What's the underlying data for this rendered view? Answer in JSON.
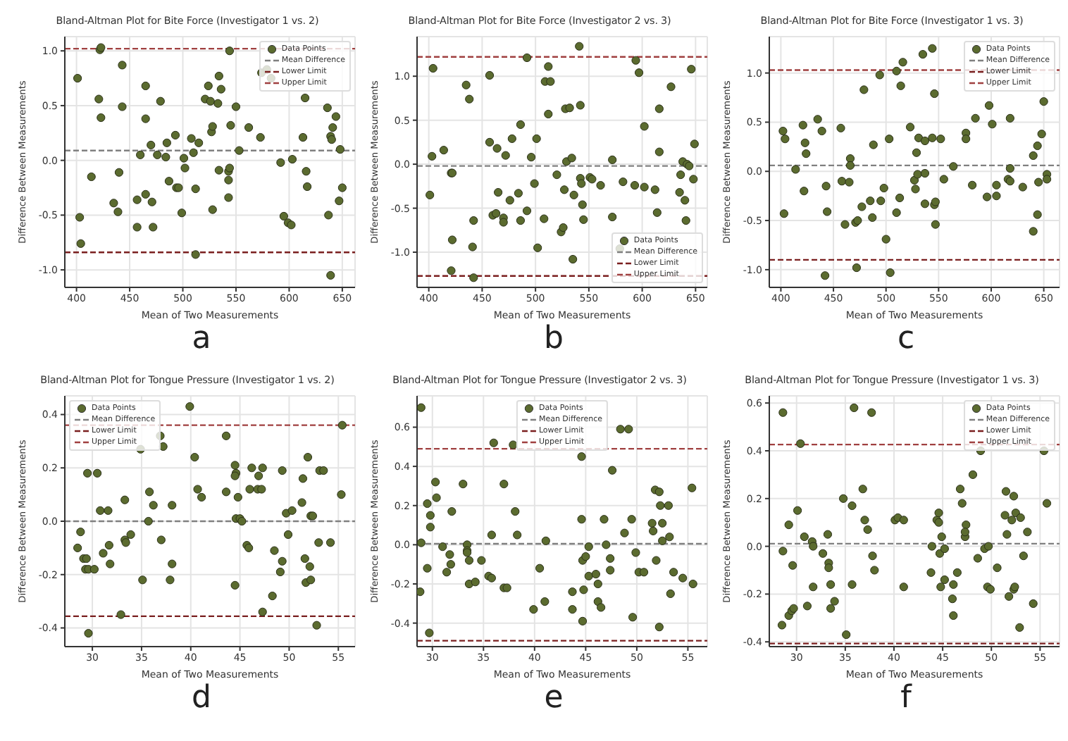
{
  "chart_data": [
    {
      "type": "scatter",
      "title": "Bland-Altman Plot for Bite Force (Investigator 1 vs. 2)",
      "xlabel": "Mean of Two Measurements",
      "ylabel": "Difference Between Measurements",
      "annotations": [
        "a"
      ],
      "xlim": [
        389,
        662
      ],
      "ylim": [
        -1.16,
        1.13
      ],
      "xticks": [
        400,
        450,
        500,
        550,
        600,
        650
      ],
      "yticks": [
        {
          "value": -1,
          "label": "-1.0"
        },
        {
          "value": -0.5,
          "label": "-0.5"
        },
        {
          "value": 0,
          "label": "0.0"
        },
        {
          "value": 0.5,
          "label": "0.5"
        },
        {
          "value": 1,
          "label": "1.0"
        }
      ],
      "grid": true,
      "legend": "top right",
      "marker": "circle",
      "series": [
        {
          "name": "Data Points",
          "color": "#5b6b2f",
          "x": [
            401,
            403,
            404,
            414,
            421,
            422,
            423,
            423,
            435,
            439,
            440,
            443,
            443,
            457,
            457,
            460,
            465,
            465,
            465,
            470,
            471,
            472,
            476,
            479,
            484,
            485,
            487,
            493,
            494,
            496,
            499,
            501,
            502,
            508,
            510,
            512,
            512,
            515,
            521,
            524,
            526,
            527,
            528,
            528,
            533,
            534,
            534,
            536,
            543,
            543,
            543,
            544,
            544,
            545,
            550,
            553,
            562,
            573,
            574,
            579,
            583,
            592,
            595,
            599,
            602,
            603,
            615,
            613,
            616,
            617,
            636,
            637,
            639,
            639,
            640,
            641,
            644,
            647,
            648,
            650
          ],
          "values": [
            0.75,
            -0.52,
            -0.76,
            -0.15,
            0.56,
            1.01,
            1.03,
            0.39,
            -0.39,
            -0.47,
            -0.11,
            0.87,
            0.49,
            -0.61,
            -0.36,
            0.05,
            0.68,
            0.38,
            -0.31,
            0.14,
            -0.38,
            -0.61,
            0.05,
            0.54,
            0.03,
            0.16,
            -0.19,
            0.23,
            -0.25,
            -0.25,
            -0.48,
            0.02,
            -0.07,
            0.2,
            0.07,
            -0.86,
            -0.26,
            0.16,
            0.56,
            0.68,
            0.54,
            0.26,
            0.31,
            -0.45,
            0.52,
            0.77,
            -0.09,
            0.65,
            -0.1,
            -0.18,
            -0.34,
            1.0,
            -0.07,
            0.32,
            0.49,
            0.09,
            0.3,
            0.21,
            0.8,
            0.83,
            0.75,
            -0.02,
            -0.51,
            -0.57,
            -0.59,
            0.01,
            0.57,
            0.21,
            -0.1,
            -0.24,
            0.48,
            -0.5,
            -1.05,
            0.22,
            0.19,
            0.3,
            0.4,
            -0.37,
            0.1,
            -0.25
          ]
        }
      ],
      "ref_lines": [
        {
          "axis": "y",
          "value": 0.09,
          "label": "Mean Difference",
          "color": "#808080",
          "line_style": "dashed"
        },
        {
          "axis": "y",
          "value": -0.84,
          "label": "Lower Limit",
          "color": "#7a1f1f",
          "line_style": "dashed"
        },
        {
          "axis": "y",
          "value": 1.02,
          "label": "Upper Limit",
          "color": "#a04040",
          "line_style": "dashed"
        }
      ]
    },
    {
      "type": "scatter",
      "title": "Bland-Altman Plot for Bite Force (Investigator 2 vs. 3)",
      "xlabel": "Mean of Two Measurements",
      "ylabel": "Difference Between Measurements",
      "annotations": [
        "b"
      ],
      "xlim": [
        389,
        661
      ],
      "ylim": [
        -1.4,
        1.45
      ],
      "xticks": [
        400,
        450,
        500,
        550,
        600,
        650
      ],
      "yticks": [
        {
          "value": -1,
          "label": "-1.0"
        },
        {
          "value": -0.5,
          "label": "-0.5"
        },
        {
          "value": 0,
          "label": "0.0"
        },
        {
          "value": 0.5,
          "label": "0.5"
        },
        {
          "value": 1,
          "label": "1.0"
        }
      ],
      "grid": true,
      "legend": "bottom right",
      "marker": "circle",
      "series": [
        {
          "name": "Data Points",
          "color": "#5b6b2f",
          "x": [
            401,
            403,
            404,
            414,
            421,
            422,
            421,
            422,
            435,
            438,
            441,
            442,
            442,
            457,
            457,
            460,
            464,
            465,
            463,
            470,
            470,
            472,
            476,
            478,
            484,
            486,
            486,
            492,
            492,
            496,
            499,
            501,
            502,
            508,
            509,
            512,
            512,
            514,
            520,
            524,
            526,
            527,
            528,
            529,
            532,
            534,
            535,
            536,
            541,
            542,
            542,
            543,
            544,
            545,
            551,
            553,
            561,
            572,
            572,
            579,
            582,
            593,
            594,
            597,
            602,
            602,
            612,
            614,
            616,
            616,
            627,
            635,
            636,
            638,
            640,
            641,
            642,
            644,
            646,
            648,
            649
          ],
          "values": [
            -0.35,
            0.09,
            1.09,
            0.16,
            -0.1,
            -0.1,
            -1.21,
            -0.86,
            0.9,
            0.74,
            -0.94,
            -0.64,
            -1.29,
            1.01,
            0.25,
            -0.58,
            0.18,
            -0.32,
            -0.56,
            -0.61,
            -0.66,
            0.1,
            -0.41,
            0.29,
            -0.33,
            0.45,
            -0.64,
            -0.53,
            1.21,
            0.08,
            -0.22,
            0.29,
            -0.95,
            -0.62,
            0.94,
            1.11,
            0.57,
            0.94,
            -0.12,
            -0.77,
            -0.72,
            -0.29,
            0.63,
            0.03,
            0.64,
            0.07,
            -1.08,
            -0.35,
            1.34,
            0.67,
            -0.16,
            -0.22,
            -0.46,
            -0.63,
            -0.15,
            -0.17,
            -0.24,
            0.05,
            -0.6,
            -0.96,
            -0.2,
            -0.24,
            1.18,
            1.04,
            -0.26,
            0.43,
            -0.29,
            -0.55,
            0.63,
            0.14,
            0.88,
            -0.32,
            -0.12,
            0.03,
            -0.41,
            -0.64,
            0.0,
            -0.02,
            1.08,
            -0.17,
            0.23
          ]
        }
      ],
      "ref_lines": [
        {
          "axis": "y",
          "value": -0.02,
          "label": "Mean Difference",
          "color": "#808080",
          "line_style": "dashed"
        },
        {
          "axis": "y",
          "value": -1.27,
          "label": "Lower Limit",
          "color": "#7a1f1f",
          "line_style": "dashed"
        },
        {
          "axis": "y",
          "value": 1.22,
          "label": "Upper Limit",
          "color": "#a04040",
          "line_style": "dashed"
        }
      ]
    },
    {
      "type": "scatter",
      "title": "Bland-Altman Plot for Bite Force (Investigator 1 vs. 3)",
      "xlabel": "Mean of Two Measurements",
      "ylabel": "Difference Between Measurements",
      "annotations": [
        "c"
      ],
      "xlim": [
        389,
        665
      ],
      "ylim": [
        -1.18,
        1.37
      ],
      "xticks": [
        400,
        450,
        500,
        550,
        600,
        650
      ],
      "yticks": [
        {
          "value": -1,
          "label": "-1.0"
        },
        {
          "value": -0.5,
          "label": "-0.5"
        },
        {
          "value": 0,
          "label": "0.0"
        },
        {
          "value": 0.5,
          "label": "0.5"
        },
        {
          "value": 1,
          "label": "1.0"
        }
      ],
      "grid": true,
      "legend": "top right",
      "marker": "circle",
      "series": [
        {
          "name": "Data Points",
          "color": "#5b6b2f",
          "x": [
            402,
            404,
            403,
            414,
            421,
            423,
            424,
            422,
            435,
            439,
            442,
            443,
            444,
            457,
            458,
            461,
            466,
            466,
            465,
            471,
            473,
            472,
            477,
            479,
            485,
            487,
            488,
            494,
            495,
            498,
            500,
            503,
            504,
            510,
            510,
            514,
            513,
            516,
            523,
            527,
            528,
            529,
            531,
            530,
            535,
            537,
            537,
            537,
            544,
            544,
            546,
            547,
            546,
            547,
            552,
            555,
            564,
            576,
            576,
            582,
            585,
            596,
            598,
            601,
            605,
            605,
            616,
            618,
            618,
            618,
            630,
            640,
            640,
            644,
            644,
            645,
            648,
            650,
            653,
            653
          ],
          "values": [
            0.41,
            0.33,
            -0.43,
            0.02,
            0.47,
            0.29,
            0.18,
            -0.2,
            0.53,
            0.41,
            -1.06,
            -0.15,
            -0.41,
            0.44,
            -0.1,
            -0.54,
            0.13,
            0.06,
            -0.11,
            -0.52,
            -0.5,
            -0.98,
            -0.36,
            0.83,
            -0.3,
            -0.47,
            0.27,
            0.98,
            -0.3,
            -0.17,
            -0.69,
            0.33,
            -1.03,
            -0.42,
            1.02,
            0.87,
            -0.27,
            1.11,
            0.45,
            -0.09,
            -0.18,
            0.19,
            0.34,
            -0.03,
            1.19,
            -0.02,
            -0.33,
            0.31,
            1.25,
            0.34,
            -0.34,
            -0.31,
            0.79,
            -0.54,
            0.33,
            -0.08,
            0.05,
            0.39,
            0.33,
            -0.14,
            0.54,
            -0.26,
            0.67,
            0.48,
            -0.25,
            -0.14,
            -0.08,
            0.03,
            -0.1,
            0.54,
            -0.16,
            0.16,
            -0.61,
            0.26,
            -0.44,
            -0.11,
            0.38,
            0.71,
            -0.03,
            -0.08
          ]
        }
      ],
      "ref_lines": [
        {
          "axis": "y",
          "value": 0.06,
          "label": "Mean Difference",
          "color": "#808080",
          "line_style": "dashed"
        },
        {
          "axis": "y",
          "value": -0.9,
          "label": "Lower Limit",
          "color": "#7a1f1f",
          "line_style": "dashed"
        },
        {
          "axis": "y",
          "value": 1.03,
          "label": "Upper Limit",
          "color": "#a04040",
          "line_style": "dashed"
        }
      ]
    },
    {
      "type": "scatter",
      "title": "Bland-Altman Plot for Tongue Pressure (Investigator 1 vs. 2)",
      "xlabel": "Mean of Two Measurements",
      "ylabel": "Difference Between Measurements",
      "annotations": [
        "d"
      ],
      "xlim": [
        27.2,
        56.7
      ],
      "ylim": [
        -0.47,
        0.47
      ],
      "xticks": [
        30,
        35,
        40,
        45,
        50,
        55
      ],
      "yticks": [
        {
          "value": -0.4,
          "label": "-0.4"
        },
        {
          "value": -0.2,
          "label": "-0.2"
        },
        {
          "value": 0,
          "label": "0.0"
        },
        {
          "value": 0.2,
          "label": "0.2"
        },
        {
          "value": 0.4,
          "label": "0.4"
        }
      ],
      "grid": true,
      "legend": "top left",
      "marker": "circle",
      "series": [
        {
          "name": "Data Points",
          "color": "#5b6b2f",
          "x": [
            28.5,
            28.8,
            29.1,
            29.4,
            29.3,
            29.6,
            29.5,
            29.6,
            30.2,
            30.5,
            30.8,
            31.1,
            31.6,
            31.7,
            31.8,
            32.9,
            33.3,
            33.3,
            33.4,
            33.9,
            34.9,
            35.1,
            35.7,
            35.8,
            36.2,
            36.9,
            37.0,
            37.2,
            37.9,
            38.1,
            38.1,
            39.9,
            40.4,
            40.7,
            41.1,
            43.6,
            43.6,
            44.5,
            44.6,
            44.5,
            44.5,
            44.6,
            44.8,
            45.0,
            45.2,
            45.7,
            45.9,
            46.0,
            46.2,
            46.8,
            46.9,
            47.3,
            47.2,
            47.3,
            48.3,
            48.5,
            49.1,
            49.3,
            49.3,
            49.7,
            49.9,
            50.3,
            51.3,
            51.4,
            51.6,
            51.7,
            51.9,
            52.1,
            52.2,
            52.4,
            52.2,
            52.8,
            53.0,
            53.1,
            53.5,
            54.2,
            55.3,
            55.4
          ],
          "values": [
            -0.1,
            -0.04,
            -0.14,
            -0.14,
            -0.18,
            -0.18,
            0.18,
            -0.42,
            -0.18,
            0.18,
            0.04,
            -0.12,
            0.04,
            -0.09,
            -0.16,
            -0.35,
            0.08,
            -0.07,
            -0.08,
            -0.05,
            0.27,
            -0.22,
            0.0,
            0.11,
            0.06,
            0.32,
            -0.07,
            0.28,
            -0.22,
            -0.16,
            0.06,
            0.43,
            0.24,
            0.12,
            0.09,
            0.11,
            0.32,
            0.21,
            0.18,
            0.17,
            -0.24,
            0.01,
            0.09,
            0.01,
            0.0,
            -0.09,
            -0.1,
            0.12,
            0.2,
            0.12,
            0.17,
            0.2,
            0.12,
            -0.34,
            -0.28,
            -0.11,
            -0.19,
            -0.15,
            0.19,
            0.03,
            -0.05,
            0.04,
            0.07,
            0.16,
            -0.14,
            -0.23,
            0.24,
            -0.17,
            0.02,
            0.02,
            -0.22,
            -0.39,
            -0.08,
            0.19,
            0.19,
            -0.08,
            0.1,
            0.36
          ]
        }
      ],
      "ref_lines": [
        {
          "axis": "y",
          "value": 0.0,
          "label": "Mean Difference",
          "color": "#808080",
          "line_style": "dashed"
        },
        {
          "axis": "y",
          "value": -0.356,
          "label": "Lower Limit",
          "color": "#7a1f1f",
          "line_style": "dashed"
        },
        {
          "axis": "y",
          "value": 0.36,
          "label": "Upper Limit",
          "color": "#a04040",
          "line_style": "dashed"
        }
      ]
    },
    {
      "type": "scatter",
      "title": "Bland-Altman Plot for Tongue Pressure (Investigator 2 vs. 3)",
      "xlabel": "Mean of Two Measurements",
      "ylabel": "Difference Between Measurements",
      "annotations": [
        "e"
      ],
      "xlim": [
        28.5,
        56.9
      ],
      "ylim": [
        -0.52,
        0.76
      ],
      "xticks": [
        30,
        35,
        40,
        45,
        50,
        55
      ],
      "yticks": [
        {
          "value": -0.4,
          "label": "-0.4"
        },
        {
          "value": -0.2,
          "label": "-0.2"
        },
        {
          "value": 0,
          "label": "0.0"
        },
        {
          "value": 0.2,
          "label": "0.2"
        },
        {
          "value": 0.4,
          "label": "0.4"
        },
        {
          "value": 0.6,
          "label": "0.6"
        }
      ],
      "grid": true,
      "legend": "top",
      "marker": "circle",
      "series": [
        {
          "name": "Data Points",
          "color": "#5b6b2f",
          "x": [
            28.9,
            28.8,
            28.9,
            29.5,
            29.5,
            29.8,
            29.8,
            29.7,
            30.3,
            30.4,
            31.0,
            31.4,
            31.7,
            31.8,
            31.9,
            33.0,
            33.4,
            33.4,
            33.4,
            33.6,
            33.6,
            34.2,
            34.8,
            35.5,
            35.8,
            35.8,
            36.0,
            37.0,
            37.3,
            37.0,
            37.9,
            38.1,
            38.3,
            39.9,
            40.5,
            41.0,
            41.1,
            43.7,
            43.7,
            44.6,
            44.6,
            44.7,
            44.8,
            44.7,
            45.0,
            45.3,
            45.3,
            46.0,
            46.2,
            46.2,
            46.5,
            46.8,
            47.0,
            47.4,
            47.4,
            47.6,
            48.4,
            48.8,
            49.2,
            49.5,
            49.6,
            49.9,
            50.2,
            50.7,
            51.5,
            51.6,
            51.8,
            51.9,
            52.2,
            52.2,
            52.3,
            52.5,
            52.5,
            53.1,
            53.2,
            53.3,
            53.6,
            54.5,
            55.4,
            55.5
          ],
          "values": [
            0.7,
            -0.24,
            0.01,
            0.21,
            -0.12,
            0.15,
            0.09,
            -0.45,
            0.32,
            0.24,
            -0.01,
            -0.14,
            -0.05,
            -0.1,
            0.17,
            0.31,
            0.0,
            -0.03,
            -0.04,
            -0.08,
            -0.2,
            -0.19,
            -0.08,
            -0.16,
            -0.17,
            0.05,
            0.52,
            -0.22,
            -0.22,
            0.31,
            0.51,
            0.17,
            0.05,
            -0.33,
            -0.12,
            -0.29,
            0.02,
            -0.24,
            -0.33,
            0.45,
            0.13,
            -0.08,
            -0.23,
            -0.39,
            -0.06,
            -0.01,
            -0.16,
            -0.15,
            -0.2,
            -0.29,
            -0.32,
            0.13,
            0.0,
            -0.13,
            -0.07,
            0.38,
            0.59,
            0.06,
            0.59,
            0.13,
            -0.37,
            -0.04,
            -0.14,
            -0.14,
            0.11,
            0.07,
            0.28,
            -0.08,
            0.27,
            -0.42,
            0.2,
            0.11,
            0.02,
            0.2,
            0.04,
            -0.25,
            -0.14,
            -0.17,
            0.29,
            -0.2
          ]
        }
      ],
      "ref_lines": [
        {
          "axis": "y",
          "value": 0.005,
          "label": "Mean Difference",
          "color": "#808080",
          "line_style": "dashed"
        },
        {
          "axis": "y",
          "value": -0.49,
          "label": "Lower Limit",
          "color": "#7a1f1f",
          "line_style": "dashed"
        },
        {
          "axis": "y",
          "value": 0.49,
          "label": "Upper Limit",
          "color": "#a04040",
          "line_style": "dashed"
        }
      ]
    },
    {
      "type": "scatter",
      "title": "Bland-Altman Plot for Tongue Pressure (Investigator 1 vs. 3)",
      "xlabel": "Mean of Two Measurements",
      "ylabel": "Difference Between Measurements",
      "annotations": [
        "f"
      ],
      "xlim": [
        27.2,
        57
      ],
      "ylim": [
        -0.42,
        0.63
      ],
      "xticks": [
        30,
        35,
        40,
        45,
        50,
        55
      ],
      "yticks": [
        {
          "value": -0.4,
          "label": "-0.4"
        },
        {
          "value": -0.2,
          "label": "-0.2"
        },
        {
          "value": 0,
          "label": "0.0"
        },
        {
          "value": 0.2,
          "label": "0.2"
        },
        {
          "value": 0.4,
          "label": "0.4"
        },
        {
          "value": 0.6,
          "label": "0.6"
        }
      ],
      "grid": true,
      "legend": "top right",
      "marker": "circle",
      "series": [
        {
          "name": "Data Points",
          "color": "#5b6b2f",
          "x": [
            28.6,
            28.6,
            28.5,
            29.2,
            29.2,
            29.5,
            29.6,
            29.7,
            30.1,
            30.4,
            30.8,
            31.1,
            31.6,
            31.7,
            31.7,
            32.7,
            33.2,
            33.3,
            33.3,
            33.5,
            33.5,
            33.9,
            34.8,
            35.1,
            35.7,
            35.7,
            35.9,
            36.8,
            37.0,
            37.3,
            37.7,
            37.8,
            38.0,
            40.1,
            40.4,
            41.0,
            41.0,
            43.8,
            43.9,
            44.4,
            44.6,
            44.6,
            44.7,
            44.8,
            44.9,
            45.2,
            45.2,
            46.0,
            46.1,
            46.1,
            46.5,
            46.8,
            47.0,
            47.3,
            47.4,
            47.3,
            48.1,
            48.6,
            48.9,
            49.3,
            49.6,
            49.7,
            49.9,
            50.6,
            51.4,
            51.5,
            51.6,
            51.8,
            52.1,
            52.3,
            52.3,
            52.5,
            52.4,
            53.0,
            52.9,
            53.3,
            53.7,
            54.3,
            55.4,
            55.7
          ],
          "values": [
            0.56,
            -0.02,
            -0.33,
            -0.29,
            0.09,
            -0.27,
            -0.08,
            -0.26,
            0.15,
            0.43,
            0.04,
            -0.25,
            0.02,
            0.0,
            -0.17,
            -0.03,
            0.05,
            -0.07,
            -0.09,
            -0.16,
            -0.26,
            -0.23,
            0.2,
            -0.37,
            0.17,
            -0.16,
            0.58,
            0.24,
            0.11,
            0.07,
            0.56,
            -0.04,
            -0.1,
            0.11,
            0.12,
            0.11,
            -0.17,
            -0.11,
            0.0,
            0.11,
            0.14,
            0.1,
            -0.03,
            -0.17,
            0.04,
            -0.01,
            -0.14,
            -0.22,
            -0.16,
            -0.29,
            -0.11,
            0.24,
            0.18,
            0.04,
            0.09,
            0.06,
            0.3,
            -0.05,
            0.4,
            -0.01,
            -0.17,
            0.0,
            -0.18,
            -0.09,
            0.13,
            0.23,
            0.05,
            -0.21,
            0.11,
            0.21,
            -0.18,
            0.14,
            -0.17,
            0.12,
            -0.34,
            -0.04,
            0.06,
            -0.24,
            0.4,
            0.18
          ]
        }
      ],
      "ref_lines": [
        {
          "axis": "y",
          "value": 0.011,
          "label": "Mean Difference",
          "color": "#808080",
          "line_style": "dashed"
        },
        {
          "axis": "y",
          "value": -0.407,
          "label": "Lower Limit",
          "color": "#7a1f1f",
          "line_style": "dashed"
        },
        {
          "axis": "y",
          "value": 0.426,
          "label": "Upper Limit",
          "color": "#a04040",
          "line_style": "dashed"
        }
      ]
    }
  ]
}
